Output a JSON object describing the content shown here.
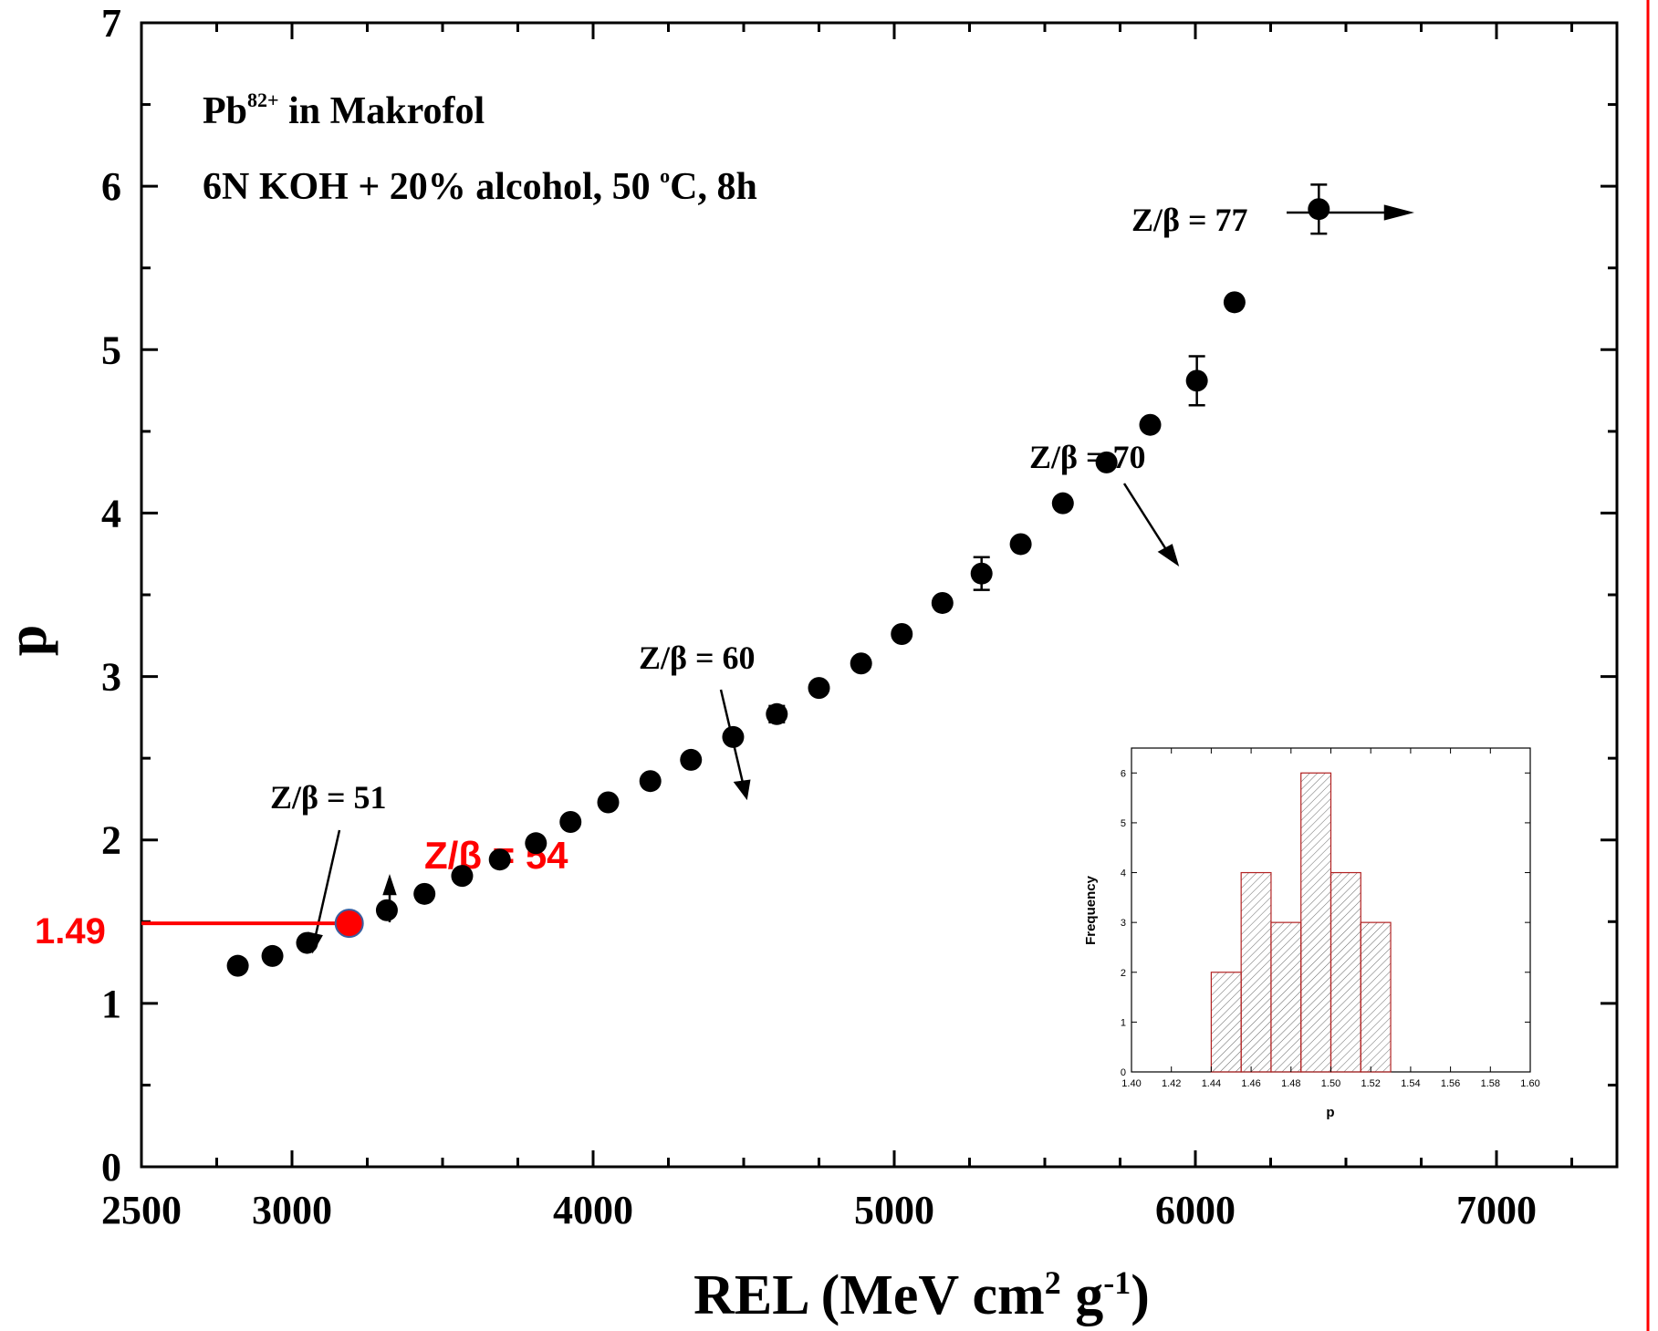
{
  "chart_data": [
    {
      "type": "scatter",
      "xlabel": "REL (MeV cm",
      "xlabel_sup1": "2",
      "xlabel_mid": " g",
      "xlabel_sup2": "-1",
      "xlabel_end": ")",
      "ylabel": "p",
      "xlim": [
        2500,
        7400
      ],
      "ylim": [
        0,
        7
      ],
      "x_ticks": [
        "2500",
        "3000",
        "4000",
        "5000",
        "6000",
        "7000"
      ],
      "y_ticks": [
        "0",
        "1",
        "2",
        "3",
        "4",
        "5",
        "6",
        "7"
      ],
      "annotation_line1_pre": "Pb",
      "annotation_line1_sup": "82+",
      "annotation_line1_post": " in Makrofol",
      "annotation_line2_pre": "6N KOH + 20% alcohol, 50 ",
      "annotation_line2_sup": "o",
      "annotation_line2_post": "C, 8h",
      "series": [
        {
          "x": [
            2820,
            2935,
            3050,
            3315,
            3440,
            3565,
            3690,
            3810,
            3925,
            4050,
            4190,
            4325,
            4465,
            4610,
            4750,
            4890,
            5025,
            5160,
            5290,
            5420,
            5560,
            5705,
            5850,
            6005,
            6130,
            6410
          ],
          "y": [
            1.23,
            1.29,
            1.37,
            1.57,
            1.67,
            1.78,
            1.88,
            1.98,
            2.11,
            2.23,
            2.36,
            2.49,
            2.63,
            2.77,
            2.93,
            3.08,
            3.26,
            3.45,
            3.63,
            3.81,
            4.06,
            4.31,
            4.54,
            4.81,
            5.29,
            5.86
          ],
          "y_err": [
            0,
            0,
            0,
            0,
            0,
            0,
            0,
            0,
            0,
            0,
            0,
            0,
            0,
            0.05,
            0,
            0,
            0,
            0,
            0.1,
            0,
            0,
            0,
            0,
            0.15,
            0,
            0.15
          ]
        }
      ],
      "arrow_labels": [
        {
          "text": "Z/β = 51"
        },
        {
          "text": "Z/β = 60"
        },
        {
          "text": "Z/β = 70"
        },
        {
          "text": "Z/β = 77"
        }
      ],
      "highlight": {
        "label": "Z/β = 54",
        "value_label": "1.49",
        "x": 3190,
        "y": 1.49,
        "color": "#ff0000"
      }
    },
    {
      "type": "bar",
      "xlabel": "p",
      "ylabel": "Frequency",
      "xlim": [
        1.4,
        1.6
      ],
      "ylim": [
        0,
        6.5
      ],
      "x_ticks": [
        "1.40",
        "1.42",
        "1.44",
        "1.46",
        "1.48",
        "1.50",
        "1.52",
        "1.54",
        "1.56",
        "1.58",
        "1.60"
      ],
      "y_ticks": [
        "0",
        "1",
        "2",
        "3",
        "4",
        "5",
        "6"
      ],
      "bin_edges": [
        1.44,
        1.455,
        1.47,
        1.485,
        1.5,
        1.515,
        1.53
      ],
      "values": [
        2,
        4,
        3,
        6,
        4,
        3
      ],
      "bar_color": "#b22222"
    }
  ]
}
